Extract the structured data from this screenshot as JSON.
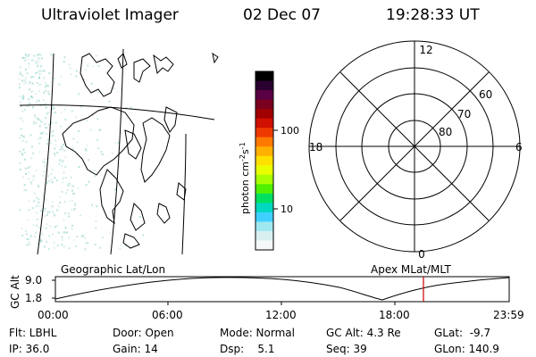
{
  "header": {
    "title": "Ultraviolet Imager",
    "date": "02 Dec 07",
    "time": "19:28:33 UT"
  },
  "colorbar": {
    "unit_label": "photon cm-2s-1",
    "unit_main": "photon cm",
    "unit_exp1": "-2",
    "unit_mid": "s",
    "unit_exp2": "-1",
    "ticks": [
      "100",
      "10"
    ],
    "colors": [
      "#000000",
      "#2a0030",
      "#5a0045",
      "#7a0020",
      "#a00000",
      "#d01000",
      "#ee3a00",
      "#ff7a00",
      "#ffb000",
      "#ffe000",
      "#e8ff00",
      "#a8ff00",
      "#50f000",
      "#00e060",
      "#00d8c0",
      "#40d0ff",
      "#a0e8f0",
      "#d8f0f0",
      "#f4f8f8"
    ]
  },
  "polar_plot": {
    "mlt_labels": {
      "top": "12",
      "left": "18",
      "right": "6",
      "bottom": "0"
    },
    "lat_labels": [
      "60",
      "70",
      "80"
    ]
  },
  "timeline": {
    "y_axis_label": "GC Alt",
    "y_ticks": [
      "9.0",
      "1.8"
    ],
    "left_caption": "Geographic Lat/Lon",
    "right_caption": "Apex MLat/MLT",
    "x_ticks": [
      "00:00",
      "06:00",
      "12:00",
      "18:00",
      "23:59"
    ],
    "current_marker_time": "19:28:33"
  },
  "status": {
    "row1": {
      "flt": "Flt: LBHL",
      "door": "Door: Open",
      "mode": "Mode: Normal",
      "gc_alt": "GC Alt: 4.3 Re",
      "glat": "GLat:  -9.7"
    },
    "row2": {
      "ip": "IP: 36.0",
      "gain": "Gain: 14",
      "dsp": "Dsp:    5.1",
      "seq": "Seq: 39",
      "glon": "GLon: 140.9"
    }
  },
  "colors": {
    "marker": "#cc0000",
    "glow": "#9fd8d0"
  }
}
